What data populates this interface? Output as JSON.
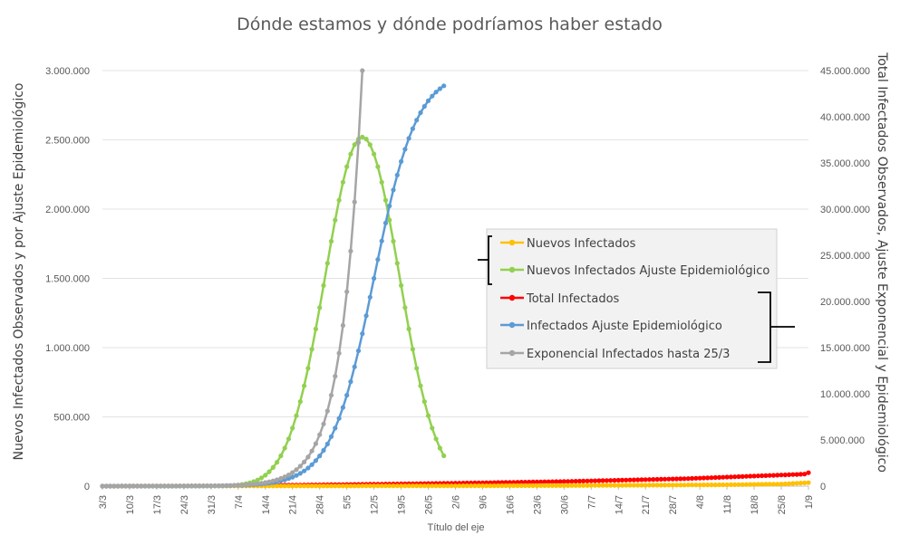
{
  "chart_data": {
    "type": "line",
    "title": "Dónde estamos y dónde podríamos haber estado",
    "xlabel": "Título del eje",
    "ylabel_left": "Nuevos Infectados Observados y por Ajuste Epidemiológico",
    "ylabel_right": "Total Infectados Observados, Ajuste Exponencial y Epidemiológico",
    "ylim_left": [
      0,
      3000000
    ],
    "ylim_right": [
      0,
      45000000
    ],
    "yticks_left": [
      "0",
      "500.000",
      "1.000.000",
      "1.500.000",
      "2.000.000",
      "2.500.000",
      "3.000.000"
    ],
    "yticks_right": [
      "0",
      "5.000.000",
      "10.000.000",
      "15.000.000",
      "20.000.000",
      "25.000.000",
      "30.000.000",
      "35.000.000",
      "40.000.000",
      "45.000.000"
    ],
    "x_start": "3/3",
    "x_end": "1/9",
    "xticks": [
      "3/3",
      "10/3",
      "17/3",
      "24/3",
      "31/3",
      "7/4",
      "14/4",
      "21/4",
      "28/4",
      "5/5",
      "12/5",
      "19/5",
      "26/5",
      "2/6",
      "9/6",
      "16/6",
      "23/6",
      "30/6",
      "7/7",
      "14/7",
      "21/7",
      "28/7",
      "4/8",
      "11/8",
      "18/8",
      "25/8",
      "1/9"
    ],
    "legend_position": "right",
    "series": [
      {
        "name": "Nuevos Infectados",
        "axis": "left",
        "color": "#FFC000",
        "points": [
          [
            "3/3",
            0
          ],
          [
            "31/3",
            1000
          ],
          [
            "30/4",
            1500
          ],
          [
            "30/5",
            2000
          ],
          [
            "30/6",
            4000
          ],
          [
            "14/7",
            6000
          ],
          [
            "31/7",
            8000
          ],
          [
            "11/8",
            10000
          ],
          [
            "25/8",
            15000
          ],
          [
            "1/9",
            25000
          ]
        ]
      },
      {
        "name": "Nuevos Infectados Ajuste Epidemiológico",
        "axis": "left",
        "color": "#92D050",
        "peak_date": "9/5",
        "peak_value": 2520000,
        "end_date": "30/5"
      },
      {
        "name": "Total Infectados",
        "axis": "right",
        "color": "#FF0000",
        "points": [
          [
            "3/3",
            0
          ],
          [
            "31/3",
            30000
          ],
          [
            "30/4",
            150000
          ],
          [
            "30/5",
            300000
          ],
          [
            "30/6",
            500000
          ],
          [
            "31/7",
            800000
          ],
          [
            "31/8",
            1300000
          ],
          [
            "1/9",
            1450000
          ]
        ]
      },
      {
        "name": "Infectados Ajuste Epidemiológico",
        "axis": "right",
        "color": "#5B9BD5",
        "midpoint_date": "12/5",
        "capacity": 45000000,
        "end_date": "30/5"
      },
      {
        "name": "Exponencial Infectados hasta 25/3",
        "axis": "right",
        "color": "#A5A5A5",
        "end_date": "9/5"
      }
    ],
    "legend_groups": [
      {
        "axis": "left",
        "entries": [
          0,
          1
        ]
      },
      {
        "axis": "right",
        "entries": [
          2,
          3,
          4
        ]
      }
    ]
  }
}
